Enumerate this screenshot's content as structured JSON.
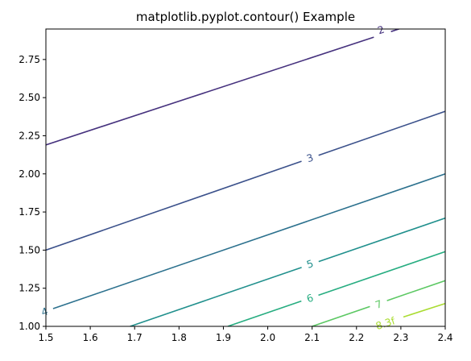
{
  "chart_data": {
    "type": "contour",
    "title": "matplotlib.pyplot.contour() Example",
    "xlabel": "",
    "ylabel": "",
    "xlim": [
      1.5,
      2.4
    ],
    "ylim": [
      1.0,
      2.95
    ],
    "xticks": [
      "1.5",
      "1.6",
      "1.7",
      "1.8",
      "1.9",
      "2.0",
      "2.1",
      "2.2",
      "2.3",
      "2.4"
    ],
    "yticks": [
      "1.00",
      "1.25",
      "1.50",
      "1.75",
      "2.00",
      "2.25",
      "2.50",
      "2.75"
    ],
    "grid": false,
    "levels": [
      {
        "name": "2",
        "label": "2",
        "color": "#46327e",
        "p1": [
          1.5,
          2.19
        ],
        "p2": [
          2.4,
          3.05
        ],
        "label_at": [
          2.255,
          2.945
        ]
      },
      {
        "name": "3",
        "label": "3",
        "color": "#3b518b",
        "p1": [
          1.5,
          1.5
        ],
        "p2": [
          2.4,
          2.41
        ],
        "label_at": [
          2.095,
          2.105
        ]
      },
      {
        "name": "4",
        "label": "4",
        "color": "#2c718e",
        "p1": [
          1.5,
          1.1
        ],
        "p2": [
          2.4,
          2.0
        ],
        "label_at": [
          1.497,
          1.097
        ]
      },
      {
        "name": "5",
        "label": "5",
        "color": "#21908d",
        "p1": [
          1.69,
          1.0
        ],
        "p2": [
          2.4,
          1.71
        ],
        "label_at": [
          2.095,
          1.41
        ]
      },
      {
        "name": "6",
        "label": "6",
        "color": "#27ad81",
        "p1": [
          1.91,
          1.0
        ],
        "p2": [
          2.4,
          1.49
        ],
        "label_at": [
          2.095,
          1.185
        ]
      },
      {
        "name": "7",
        "label": "7",
        "color": "#5cc863",
        "p1": [
          2.1,
          1.0
        ],
        "p2": [
          2.4,
          1.3
        ],
        "label_at": [
          2.25,
          1.145
        ]
      },
      {
        "name": "8.3f",
        "label": "8.3f",
        "color": "#aadc32",
        "p1": [
          2.24,
          1.0
        ],
        "p2": [
          2.4,
          1.15
        ],
        "label_at": [
          2.265,
          1.02
        ]
      }
    ]
  }
}
